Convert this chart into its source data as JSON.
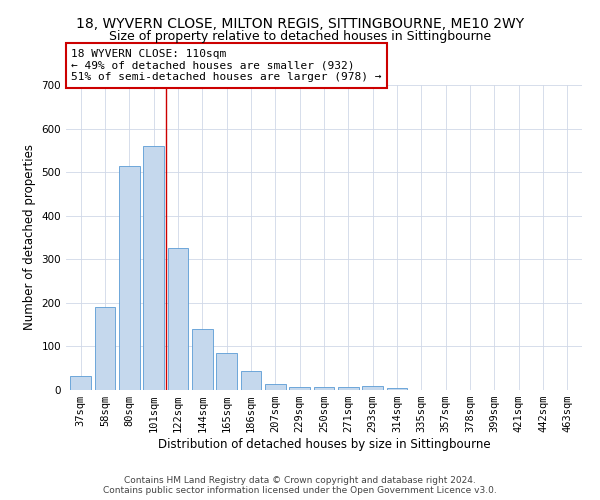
{
  "title1": "18, WYVERN CLOSE, MILTON REGIS, SITTINGBOURNE, ME10 2WY",
  "title2": "Size of property relative to detached houses in Sittingbourne",
  "xlabel": "Distribution of detached houses by size in Sittingbourne",
  "ylabel": "Number of detached properties",
  "categories": [
    "37sqm",
    "58sqm",
    "80sqm",
    "101sqm",
    "122sqm",
    "144sqm",
    "165sqm",
    "186sqm",
    "207sqm",
    "229sqm",
    "250sqm",
    "271sqm",
    "293sqm",
    "314sqm",
    "335sqm",
    "357sqm",
    "378sqm",
    "399sqm",
    "421sqm",
    "442sqm",
    "463sqm"
  ],
  "values": [
    33,
    190,
    515,
    560,
    327,
    140,
    85,
    44,
    13,
    7,
    6,
    6,
    10,
    5,
    0,
    0,
    0,
    0,
    0,
    0,
    0
  ],
  "bar_color": "#c5d8ed",
  "bar_edge_color": "#5b9bd5",
  "vline_x": 3.5,
  "vline_color": "#cc0000",
  "annotation_text": "18 WYVERN CLOSE: 110sqm\n← 49% of detached houses are smaller (932)\n51% of semi-detached houses are larger (978) →",
  "annotation_box_color": "#ffffff",
  "annotation_box_edge": "#cc0000",
  "ylim": [
    0,
    700
  ],
  "yticks": [
    0,
    100,
    200,
    300,
    400,
    500,
    600,
    700
  ],
  "footer": "Contains HM Land Registry data © Crown copyright and database right 2024.\nContains public sector information licensed under the Open Government Licence v3.0.",
  "bg_color": "#ffffff",
  "grid_color": "#d0d8e8",
  "title1_fontsize": 10,
  "title2_fontsize": 9,
  "xlabel_fontsize": 8.5,
  "ylabel_fontsize": 8.5,
  "tick_fontsize": 7.5,
  "footer_fontsize": 6.5,
  "annot_fontsize": 8
}
